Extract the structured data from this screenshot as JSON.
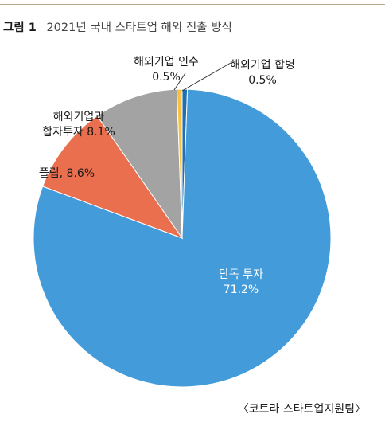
{
  "figure": {
    "label": "그림 1",
    "title": "2021년 국내 스타트업 해외 진출 방식",
    "source": "〈코트라 스타트업지원팀〉"
  },
  "colors": {
    "rule": "#b9a88e",
    "slice_direct": "#439cd9",
    "slice_platform": "#e96f4e",
    "slice_jv": "#a3a3a3",
    "slice_acq": "#f7c144",
    "slice_merger": "#1f6fb2"
  },
  "chart_data": {
    "type": "pie",
    "title": "2021년 국내 스타트업 해외 진출 방식",
    "start_angle_deg": 0,
    "direction": "clockwise-from-top",
    "slices": [
      {
        "label": "해외기업 합병",
        "value": 0.5,
        "value_text": "0.5%",
        "color": "#1f6fb2",
        "label_lines": [
          "해외기업 합병",
          "0.5%"
        ]
      },
      {
        "label": "단독 투자",
        "value": 71.2,
        "value_text": "71.2%",
        "color": "#439cd9",
        "label_lines": [
          "단독 투자",
          "71.2%"
        ]
      },
      {
        "label": "플립",
        "value": 8.6,
        "value_text": "8.6%",
        "color": "#e96f4e",
        "label_lines": [
          "플립, 8.6%"
        ]
      },
      {
        "label": "해외기업과 합자투자",
        "value": 8.1,
        "value_text": "8.1%",
        "color": "#a3a3a3",
        "label_lines": [
          "해외기업과",
          "합자투자 8.1%"
        ]
      },
      {
        "label": "해외기업 인수",
        "value": 0.5,
        "value_text": "0.5%",
        "color": "#f7c144",
        "label_lines": [
          "해외기업 인수",
          "0.5%"
        ]
      }
    ]
  }
}
